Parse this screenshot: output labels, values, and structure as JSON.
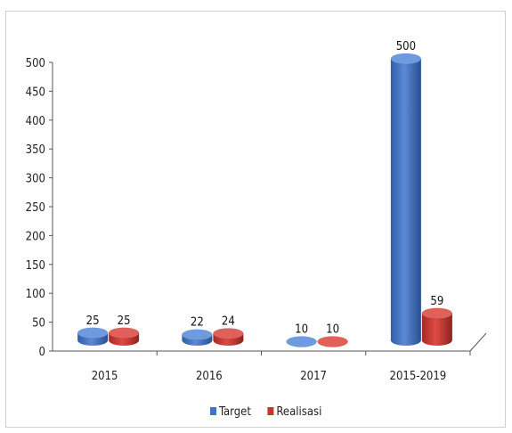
{
  "chart_data": {
    "type": "bar",
    "title": "",
    "xlabel": "",
    "ylabel": "",
    "categories": [
      "2015",
      "2016",
      "2017",
      "2015-2019"
    ],
    "series": [
      {
        "name": "Target",
        "values": [
          25,
          22,
          10,
          500
        ],
        "color": "#4472C4"
      },
      {
        "name": "Realisasi",
        "values": [
          25,
          24,
          10,
          59
        ],
        "color": "#C0392B"
      }
    ],
    "ylim": [
      0,
      500
    ],
    "yticks": [
      0,
      50,
      100,
      150,
      200,
      250,
      300,
      350,
      400,
      450,
      500
    ],
    "grid": false,
    "legend": "bottom",
    "style": "3d-cylinder"
  }
}
